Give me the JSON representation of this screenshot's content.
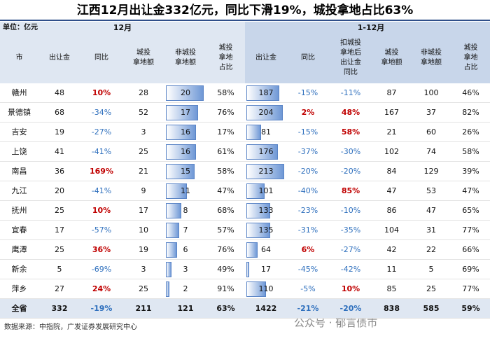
{
  "title": "江西12月出让金332亿元，同比下滑19%，城投拿地占比63%",
  "table": {
    "unit": "单位：亿元",
    "groups": [
      "12月",
      "1-12月"
    ],
    "columns": [
      "市",
      "出让金",
      "同比",
      "城投\n拿地额",
      "非城投\n拿地额",
      "城投\n拿地\n占比",
      "出让金",
      "同比",
      "扣城投\n拿地后\n出让金\n同比",
      "城投\n拿地额",
      "非城投\n拿地额",
      "城投\n拿地\n占比"
    ],
    "rows": [
      [
        "赣州",
        48,
        "10%",
        28,
        20,
        "58%",
        187,
        "-15%",
        "-11%",
        87,
        100,
        "46%"
      ],
      [
        "景德镇",
        68,
        "-34%",
        52,
        17,
        "76%",
        204,
        "2%",
        "48%",
        167,
        37,
        "82%"
      ],
      [
        "吉安",
        19,
        "-27%",
        3,
        16,
        "17%",
        81,
        "-15%",
        "58%",
        21,
        60,
        "26%"
      ],
      [
        "上饶",
        41,
        "-41%",
        25,
        16,
        "61%",
        176,
        "-37%",
        "-30%",
        102,
        74,
        "58%"
      ],
      [
        "南昌",
        36,
        "169%",
        21,
        15,
        "58%",
        213,
        "-20%",
        "-20%",
        84,
        129,
        "39%"
      ],
      [
        "九江",
        20,
        "-41%",
        9,
        11,
        "47%",
        101,
        "-40%",
        "85%",
        47,
        53,
        "47%"
      ],
      [
        "抚州",
        25,
        "10%",
        17,
        8,
        "68%",
        133,
        "-23%",
        "-10%",
        86,
        47,
        "65%"
      ],
      [
        "宜春",
        17,
        "-57%",
        10,
        7,
        "57%",
        135,
        "-31%",
        "-35%",
        104,
        31,
        "77%"
      ],
      [
        "鹰潭",
        25,
        "36%",
        19,
        6,
        "76%",
        64,
        "6%",
        "-27%",
        42,
        22,
        "66%"
      ],
      [
        "新余",
        5,
        "-69%",
        3,
        3,
        "49%",
        17,
        "-45%",
        "-42%",
        11,
        5,
        "69%"
      ],
      [
        "萍乡",
        27,
        "24%",
        25,
        2,
        "91%",
        110,
        "-5%",
        "10%",
        85,
        25,
        "77%"
      ]
    ],
    "total": [
      "全省",
      332,
      "-19%",
      211,
      121,
      "63%",
      1422,
      "-21%",
      "-20%",
      838,
      585,
      "59%"
    ]
  },
  "source": "数据来源：中指院，广发证券发展研究中心",
  "watermark": "公众号 · 郁言债市"
}
